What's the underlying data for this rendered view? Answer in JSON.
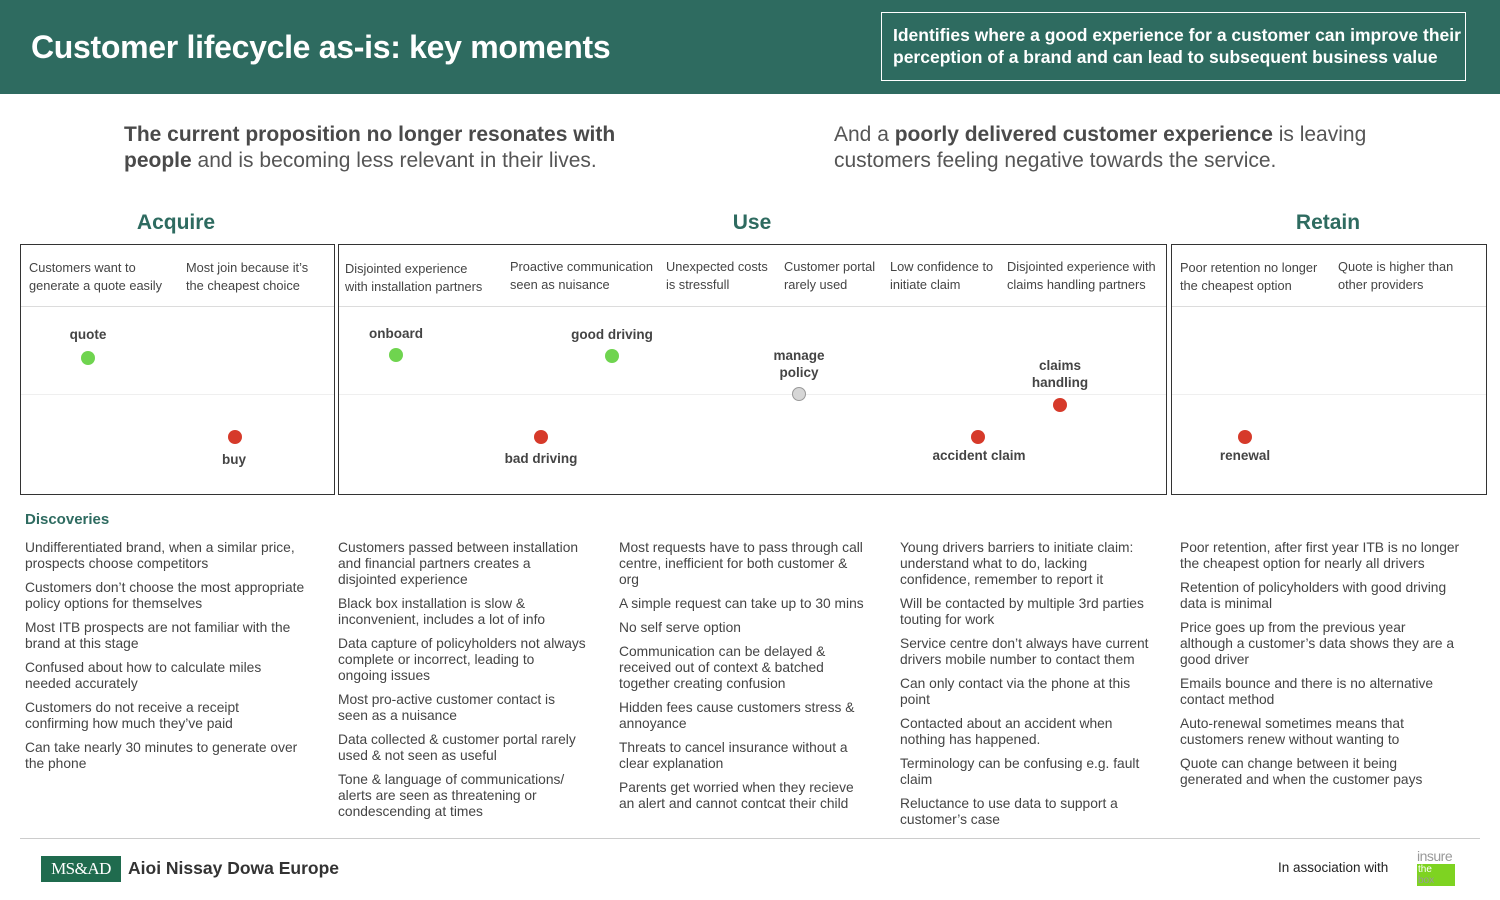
{
  "colors": {
    "brand": "#2e6b60",
    "good": "#6fd44f",
    "bad": "#d63a2a",
    "neutral": "#d6d6d6"
  },
  "header": {
    "title": "Customer lifecycle as-is: key moments",
    "box_line1": "Identifies where a good experience for a customer can improve their",
    "box_line2": "perception of a brand and can lead to subsequent business value"
  },
  "lead_left": {
    "b1": "The current proposition no longer resonates with",
    "b2": "people",
    "t2": " and is becoming less relevant in their lives."
  },
  "lead_right": {
    "t1": "And a ",
    "b1": "poorly delivered customer experience",
    "t1b": " is leaving",
    "t2": "customers feeling negative towards the service."
  },
  "stages": {
    "acquire": "Acquire",
    "use": "Use",
    "retain": "Retain"
  },
  "moments": [
    {
      "l1": "Customers want to",
      "l2": "generate a quote easily"
    },
    {
      "l1": "Most join because it’s",
      "l2": "the cheapest choice"
    },
    {
      "l1": "Disjointed experience",
      "l2": "with installation partners"
    },
    {
      "l1": "Proactive communication",
      "l2": "seen as nuisance"
    },
    {
      "l1": "Unexpected costs",
      "l2": "is stressfull"
    },
    {
      "l1": "Customer portal",
      "l2": "rarely used"
    },
    {
      "l1": "Low confidence to",
      "l2": "initiate claim"
    },
    {
      "l1": "Disjointed experience with",
      "l2": "claims handling partners"
    },
    {
      "l1": "Poor retention no longer",
      "l2": "the cheapest option"
    },
    {
      "l1": "Quote is higher than",
      "l2": "other providers"
    }
  ],
  "touchpoints": [
    {
      "l1": "quote",
      "l2": "",
      "sentiment": "good"
    },
    {
      "l1": "buy",
      "l2": "",
      "sentiment": "bad"
    },
    {
      "l1": "onboard",
      "l2": "",
      "sentiment": "good"
    },
    {
      "l1": "bad driving",
      "l2": "",
      "sentiment": "bad"
    },
    {
      "l1": "good driving",
      "l2": "",
      "sentiment": "good"
    },
    {
      "l1": "manage",
      "l2": "policy",
      "sentiment": "neutral"
    },
    {
      "l1": "accident claim",
      "l2": "",
      "sentiment": "bad"
    },
    {
      "l1": "claims",
      "l2": "handling",
      "sentiment": "bad"
    },
    {
      "l1": "renewal",
      "l2": "",
      "sentiment": "bad"
    }
  ],
  "discoveries_title": "Discoveries",
  "discoveries": [
    [
      [
        "Undifferentiated brand, when a similar price,",
        "prospects choose competitors"
      ],
      [
        "Customers don’t choose the most appropriate",
        "policy options for themselves"
      ],
      [
        "Most ITB prospects are not familiar with the",
        "brand at this stage"
      ],
      [
        "Confused about how to calculate miles",
        "needed accurately"
      ],
      [
        "Customers do not receive a receipt",
        "confirming how much they’ve paid"
      ],
      [
        "Can take nearly 30 minutes to generate over",
        "the phone"
      ]
    ],
    [
      [
        "Customers passed between installation",
        "and financial partners creates a",
        "disjointed experience"
      ],
      [
        "Black box installation is slow &",
        "inconvenient, includes a lot of info"
      ],
      [
        "Data capture of policyholders not always",
        "complete or incorrect, leading to",
        "ongoing issues"
      ],
      [
        "Most pro-active customer contact is",
        "seen as a nuisance"
      ],
      [
        "Data collected & customer portal rarely",
        "used & not seen as useful"
      ],
      [
        "Tone & language of communications/",
        "alerts are seen as threatening or",
        "condescending at times"
      ]
    ],
    [
      [
        "Most requests have to pass through call",
        "centre, inefficient for both customer &",
        "org"
      ],
      [
        "A simple request can take up to 30 mins"
      ],
      [
        "No self serve option"
      ],
      [
        "Communication can be delayed &",
        "received out of context & batched",
        "together creating confusion"
      ],
      [
        "Hidden fees cause customers stress &",
        "annoyance"
      ],
      [
        "Threats to cancel insurance without a",
        "clear explanation"
      ],
      [
        "Parents get worried when they recieve",
        "an alert and cannot contcat their child"
      ]
    ],
    [
      [
        "Young drivers barriers to initiate claim:",
        "understand what to do, lacking",
        "confidence, remember to report it"
      ],
      [
        "Will be contacted by multiple 3rd parties",
        "touting for work"
      ],
      [
        "Service centre don’t always have current",
        "drivers mobile number to contact them"
      ],
      [
        "Can only contact via the phone at this",
        "point"
      ],
      [
        "Contacted about an accident when",
        "nothing has happened."
      ],
      [
        "Terminology can be confusing e.g. fault",
        "claim"
      ],
      [
        "Reluctance to use data to support a",
        "customer’s case"
      ]
    ],
    [
      [
        "Poor retention, after first year ITB is no longer",
        "the cheapest option for nearly all drivers"
      ],
      [
        "Retention of policyholders with good driving",
        "data is minimal"
      ],
      [
        "Price goes up from the previous year",
        "although a customer’s data shows they are a",
        "good driver"
      ],
      [
        "Emails bounce and there is no alternative",
        "contact method"
      ],
      [
        "Auto-renewal sometimes means that",
        "customers renew without wanting to"
      ],
      [
        "Quote can change between it being",
        "generated and when the customer pays"
      ]
    ]
  ],
  "footer": {
    "logo_mark": "MS&AD",
    "company": "Aioi Nissay Dowa Europe",
    "assoc": "In association with",
    "itb_insure": "insure",
    "itb_the": "the",
    "itb_box": "box"
  }
}
